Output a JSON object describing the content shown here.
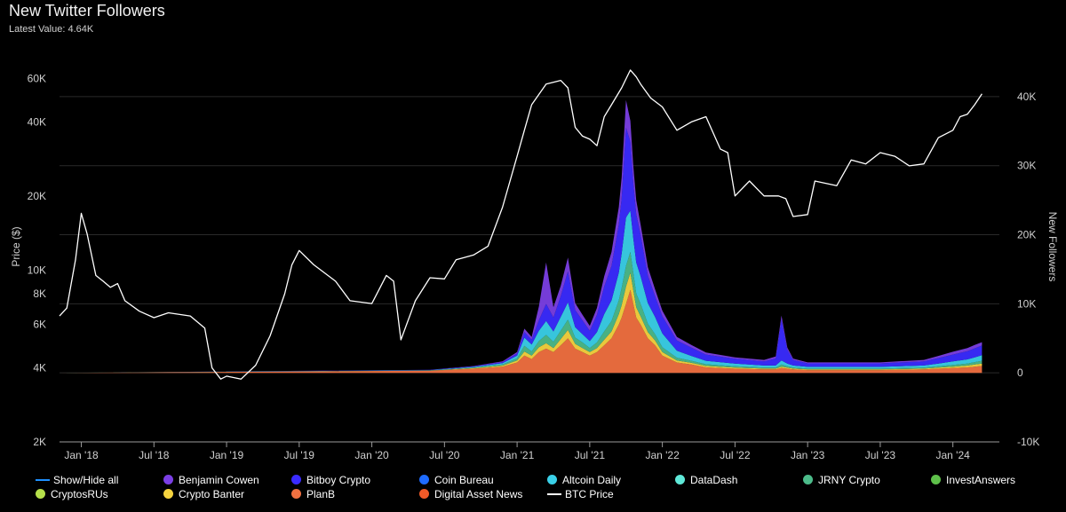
{
  "header": {
    "title": "New Twitter Followers",
    "latest_value": "Latest Value: 4.64K"
  },
  "colors": {
    "background": "#000000",
    "btc_line": "#ffffff",
    "grid": "#2a2a2a"
  },
  "chart_data": {
    "type": "area",
    "title": "New Twitter Followers",
    "subtitle": "Latest Value: 4.64K",
    "ylabel_left": "Price ($)",
    "ylabel_right": "New Followers",
    "left_axis": {
      "scale": "log",
      "range": [
        2000,
        70000
      ],
      "ticks": [
        {
          "value": 2000,
          "label": "2K"
        },
        {
          "value": 4000,
          "label": "4K"
        },
        {
          "value": 6000,
          "label": "6K"
        },
        {
          "value": 8000,
          "label": "8K"
        },
        {
          "value": 10000,
          "label": "10K"
        },
        {
          "value": 20000,
          "label": "20K"
        },
        {
          "value": 40000,
          "label": "40K"
        },
        {
          "value": 60000,
          "label": "60K"
        }
      ]
    },
    "right_axis": {
      "scale": "linear",
      "range": [
        -10000,
        45000
      ],
      "ticks": [
        {
          "value": -10000,
          "label": "-10K"
        },
        {
          "value": 0,
          "label": "0"
        },
        {
          "value": 10000,
          "label": "10K"
        },
        {
          "value": 20000,
          "label": "20K"
        },
        {
          "value": 30000,
          "label": "30K"
        },
        {
          "value": 40000,
          "label": "40K"
        }
      ]
    },
    "x_axis": {
      "range": [
        2017.85,
        2024.32
      ],
      "ticks": [
        {
          "value": 2018.0,
          "label": "Jan '18"
        },
        {
          "value": 2018.5,
          "label": "Jul '18"
        },
        {
          "value": 2019.0,
          "label": "Jan '19"
        },
        {
          "value": 2019.5,
          "label": "Jul '19"
        },
        {
          "value": 2020.0,
          "label": "Jan '20"
        },
        {
          "value": 2020.5,
          "label": "Jul '20"
        },
        {
          "value": 2021.0,
          "label": "Jan '21"
        },
        {
          "value": 2021.5,
          "label": "Jul '21"
        },
        {
          "value": 2022.0,
          "label": "Jan '22"
        },
        {
          "value": 2022.5,
          "label": "Jul '22"
        },
        {
          "value": 2023.0,
          "label": "Jan '23"
        },
        {
          "value": 2023.5,
          "label": "Jul '23"
        },
        {
          "value": 2024.0,
          "label": "Jan '24"
        }
      ]
    },
    "btc_price": {
      "name": "BTC Price",
      "x": [
        2017.85,
        2017.9,
        2017.96,
        2018.0,
        2018.04,
        2018.1,
        2018.15,
        2018.2,
        2018.25,
        2018.3,
        2018.4,
        2018.5,
        2018.6,
        2018.75,
        2018.85,
        2018.9,
        2018.96,
        2019.0,
        2019.1,
        2019.2,
        2019.3,
        2019.4,
        2019.45,
        2019.5,
        2019.6,
        2019.75,
        2019.85,
        2020.0,
        2020.1,
        2020.15,
        2020.2,
        2020.3,
        2020.4,
        2020.5,
        2020.58,
        2020.7,
        2020.8,
        2020.9,
        2021.0,
        2021.05,
        2021.1,
        2021.2,
        2021.3,
        2021.35,
        2021.4,
        2021.45,
        2021.5,
        2021.55,
        2021.6,
        2021.65,
        2021.72,
        2021.78,
        2021.82,
        2021.85,
        2021.92,
        2022.0,
        2022.1,
        2022.2,
        2022.3,
        2022.4,
        2022.45,
        2022.5,
        2022.6,
        2022.7,
        2022.8,
        2022.85,
        2022.9,
        2023.0,
        2023.05,
        2023.2,
        2023.3,
        2023.4,
        2023.5,
        2023.6,
        2023.7,
        2023.8,
        2023.9,
        2024.0,
        2024.05,
        2024.1,
        2024.15,
        2024.2
      ],
      "values": [
        6500,
        7000,
        11000,
        17000,
        14000,
        9500,
        9000,
        8500,
        8800,
        7500,
        6800,
        6400,
        6700,
        6500,
        5800,
        4000,
        3600,
        3700,
        3600,
        4100,
        5400,
        8000,
        10500,
        12000,
        10500,
        9000,
        7500,
        7300,
        9500,
        9000,
        5200,
        7500,
        9300,
        9200,
        11000,
        11500,
        12500,
        18000,
        29000,
        37000,
        47000,
        57000,
        59000,
        55000,
        38000,
        35000,
        34000,
        32000,
        42000,
        47000,
        55000,
        65000,
        61000,
        57000,
        50000,
        46000,
        37000,
        40000,
        42000,
        31000,
        30000,
        20000,
        23000,
        20000,
        20000,
        19500,
        16500,
        16800,
        23000,
        22000,
        28000,
        27000,
        30000,
        29000,
        26500,
        27000,
        34500,
        37000,
        42000,
        43000,
        47000,
        52000
      ]
    },
    "series": [
      {
        "name": "Show/Hide all",
        "color": "#1e90ff"
      },
      {
        "name": "Benjamin Cowen",
        "color": "#7b3fe4"
      },
      {
        "name": "Bitboy Crypto",
        "color": "#3a2bff"
      },
      {
        "name": "Coin Bureau",
        "color": "#1e6bff"
      },
      {
        "name": "Altcoin Daily",
        "color": "#3ad0e8"
      },
      {
        "name": "DataDash",
        "color": "#5fe8d8"
      },
      {
        "name": "JRNY Crypto",
        "color": "#4cbb8a"
      },
      {
        "name": "InvestAnswers",
        "color": "#5ec04a"
      },
      {
        "name": "CryptosRUs",
        "color": "#b5e04a"
      },
      {
        "name": "Crypto Banter",
        "color": "#f5d33f"
      },
      {
        "name": "PlanB",
        "color": "#f07040"
      },
      {
        "name": "Digital Asset News",
        "color": "#f05a28"
      },
      {
        "name": "BTC Price",
        "color": "#ffffff",
        "marker": "line"
      }
    ],
    "stack": {
      "x": [
        2017.85,
        2020.4,
        2020.7,
        2020.9,
        2021.0,
        2021.05,
        2021.1,
        2021.15,
        2021.2,
        2021.25,
        2021.3,
        2021.35,
        2021.4,
        2021.45,
        2021.5,
        2021.55,
        2021.6,
        2021.65,
        2021.7,
        2021.72,
        2021.75,
        2021.78,
        2021.8,
        2021.82,
        2021.85,
        2021.9,
        2021.95,
        2022.0,
        2022.1,
        2022.2,
        2022.3,
        2022.5,
        2022.7,
        2022.78,
        2022.82,
        2022.86,
        2022.9,
        2023.0,
        2023.5,
        2023.8,
        2023.9,
        2024.0,
        2024.1,
        2024.15,
        2024.2
      ],
      "layers": [
        {
          "name": "PlanB",
          "color": "#f07040",
          "values": [
            0,
            300,
            600,
            900,
            1500,
            2500,
            2000,
            3000,
            3500,
            3000,
            4000,
            5000,
            3500,
            3000,
            2500,
            3000,
            4000,
            5000,
            7000,
            8000,
            10000,
            12000,
            10000,
            8000,
            7000,
            5000,
            4000,
            2500,
            1500,
            1200,
            800,
            600,
            500,
            500,
            700,
            600,
            500,
            400,
            400,
            500,
            600,
            700,
            800,
            900,
            1000
          ]
        },
        {
          "name": "Crypto Banter",
          "color": "#f5d33f",
          "values": [
            0,
            30,
            80,
            150,
            300,
            600,
            500,
            700,
            800,
            600,
            900,
            1200,
            700,
            600,
            500,
            600,
            800,
            1000,
            1500,
            1800,
            2500,
            2500,
            2000,
            1500,
            1200,
            900,
            700,
            500,
            300,
            250,
            200,
            150,
            120,
            120,
            200,
            150,
            120,
            100,
            100,
            120,
            150,
            200,
            250,
            300,
            350
          ]
        },
        {
          "name": "JRNY Crypto",
          "color": "#4cbb8a",
          "values": [
            0,
            30,
            80,
            150,
            300,
            800,
            600,
            900,
            1200,
            900,
            1200,
            1500,
            900,
            800,
            600,
            800,
            1200,
            1500,
            2000,
            2500,
            3000,
            3000,
            2500,
            2000,
            1800,
            1200,
            900,
            700,
            400,
            300,
            250,
            200,
            150,
            150,
            300,
            200,
            150,
            120,
            120,
            150,
            200,
            250,
            300,
            350,
            400
          ]
        },
        {
          "name": "Altcoin Daily",
          "color": "#3ad0e8",
          "values": [
            0,
            40,
            100,
            200,
            400,
            1200,
            1000,
            1500,
            2000,
            1500,
            2000,
            2500,
            1500,
            1200,
            1000,
            1500,
            2500,
            3000,
            4000,
            5000,
            7000,
            6000,
            5000,
            4500,
            4000,
            3000,
            2500,
            2000,
            1000,
            700,
            500,
            400,
            300,
            300,
            600,
            400,
            300,
            250,
            250,
            300,
            400,
            500,
            600,
            700,
            800
          ]
        },
        {
          "name": "Bitboy Crypto",
          "color": "#3a2bff",
          "values": [
            0,
            30,
            80,
            150,
            300,
            800,
            700,
            1500,
            2500,
            2000,
            3000,
            4500,
            2500,
            2000,
            1500,
            2500,
            4000,
            5000,
            7000,
            8000,
            13000,
            10000,
            8000,
            7000,
            6000,
            4000,
            3000,
            2500,
            1500,
            1200,
            900,
            700,
            600,
            1000,
            6000,
            2000,
            800,
            500,
            500,
            600,
            800,
            1000,
            1200,
            1300,
            1400
          ]
        },
        {
          "name": "Benjamin Cowen",
          "color": "#7b3fe4",
          "values": [
            0,
            20,
            50,
            100,
            200,
            500,
            400,
            2000,
            6000,
            1500,
            1500,
            2000,
            1000,
            800,
            700,
            1000,
            1500,
            2000,
            2500,
            3000,
            4000,
            3000,
            2500,
            2000,
            1500,
            1200,
            1000,
            800,
            500,
            400,
            300,
            200,
            200,
            300,
            500,
            300,
            200,
            150,
            150,
            200,
            300,
            400,
            450,
            500,
            500
          ]
        }
      ]
    }
  }
}
